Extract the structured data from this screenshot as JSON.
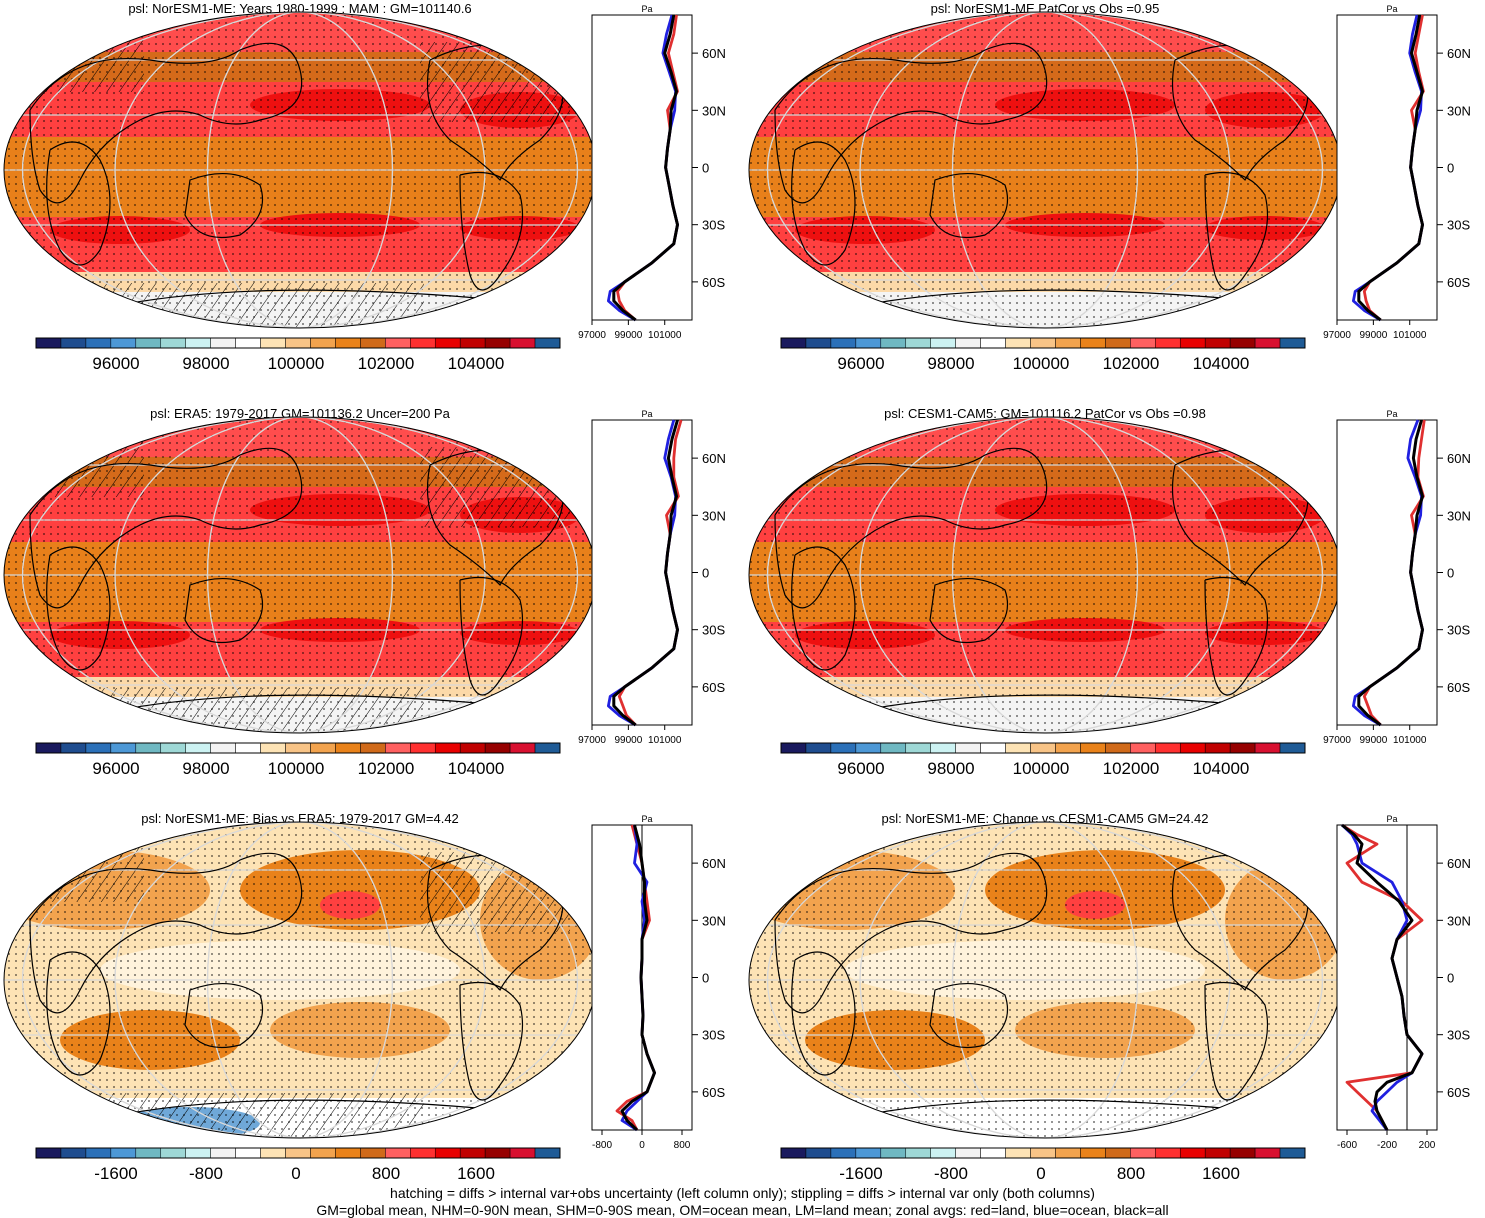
{
  "colors": {
    "scale": [
      "#1a1a5e",
      "#1f4d8f",
      "#2b70b8",
      "#4d98d6",
      "#6fb8c2",
      "#9ed8d6",
      "#ccf2f2",
      "#f3f3f3",
      "#ffffff",
      "#fde3b5",
      "#f8c487",
      "#f2a34e",
      "#e9821a",
      "#d06a1a",
      "#ff6060",
      "#ff3030",
      "#e80000",
      "#c00000",
      "#960000",
      "#d81030",
      "#1f5b96"
    ],
    "land": "#e03030",
    "ocean": "#2020e0",
    "all": "#000000"
  },
  "chart_data": [
    {
      "type": "heatmap",
      "title": "psl: NorESM1-ME: Years 1980-1999 : MAM : GM=101140.6",
      "colorbar_ticks": [
        "96000",
        "98000",
        "100000",
        "102000",
        "104000"
      ],
      "zonal": {
        "axis_label": "Pa",
        "x_ticks": [
          "97000",
          "99000",
          "101000"
        ],
        "xlim": [
          97000,
          102500
        ],
        "y_ticks": [
          "60N",
          "30N",
          "0",
          "30S",
          "60S"
        ],
        "lat_values": [
          80,
          70,
          60,
          50,
          40,
          30,
          20,
          10,
          0,
          -10,
          -20,
          -30,
          -40,
          -50,
          -60,
          -65,
          -70,
          -75,
          -80
        ],
        "series": [
          {
            "name": "land",
            "values": [
              101650,
              101500,
              101200,
              101450,
              101700,
              101150,
              101300,
              101150,
              101050,
              101250,
              101450,
              101700,
              101500,
              100300,
              98800,
              98400,
              98500,
              98800,
              99400
            ]
          },
          {
            "name": "ocean",
            "values": [
              101400,
              101100,
              100900,
              101250,
              101600,
              101550,
              101300,
              101150,
              101050,
              101250,
              101450,
              101700,
              101500,
              100300,
              98800,
              98000,
              97900,
              98500,
              99400
            ]
          },
          {
            "name": "all",
            "values": [
              101500,
              101300,
              101000,
              101350,
              101650,
              101350,
              101300,
              101150,
              101050,
              101250,
              101450,
              101700,
              101500,
              100300,
              98800,
              98200,
              98200,
              98700,
              99400
            ]
          }
        ]
      }
    },
    {
      "type": "heatmap",
      "title": "psl: NorESM1-ME PatCor vs Obs =0.95",
      "colorbar_ticks": [
        "96000",
        "98000",
        "100000",
        "102000",
        "104000"
      ],
      "zonal": {
        "axis_label": "Pa",
        "x_ticks": [
          "97000",
          "99000",
          "101000"
        ],
        "xlim": [
          97000,
          102500
        ],
        "y_ticks": [
          "60N",
          "30N",
          "0",
          "30S",
          "60S"
        ],
        "lat_values": [
          80,
          70,
          60,
          50,
          40,
          30,
          20,
          10,
          0,
          -10,
          -20,
          -30,
          -40,
          -50,
          -60,
          -65,
          -70,
          -75,
          -80
        ],
        "series": [
          {
            "name": "land",
            "values": [
              101700,
              101500,
              101300,
              101500,
              101750,
              101100,
              101300,
              101150,
              101050,
              101250,
              101450,
              101700,
              101500,
              100300,
              98800,
              98500,
              98600,
              98800,
              99400
            ]
          },
          {
            "name": "ocean",
            "values": [
              101400,
              101150,
              101000,
              101300,
              101650,
              101600,
              101300,
              101150,
              101050,
              101250,
              101450,
              101700,
              101500,
              100300,
              98800,
              98000,
              97900,
              98500,
              99400
            ]
          },
          {
            "name": "all",
            "values": [
              101550,
              101350,
              101100,
              101400,
              101700,
              101400,
              101300,
              101150,
              101050,
              101250,
              101450,
              101700,
              101500,
              100300,
              98800,
              98200,
              98200,
              98700,
              99400
            ]
          }
        ]
      }
    },
    {
      "type": "heatmap",
      "title": "psl: ERA5: 1979-2017 GM=101136.2 Uncer=200 Pa",
      "colorbar_ticks": [
        "96000",
        "98000",
        "100000",
        "102000",
        "104000"
      ],
      "zonal": {
        "axis_label": "Pa",
        "x_ticks": [
          "97000",
          "99000",
          "101000"
        ],
        "xlim": [
          97000,
          102500
        ],
        "y_ticks": [
          "60N",
          "30N",
          "0",
          "30S",
          "60S"
        ],
        "lat_values": [
          80,
          70,
          60,
          50,
          40,
          30,
          20,
          10,
          0,
          -10,
          -20,
          -30,
          -40,
          -50,
          -60,
          -65,
          -70,
          -75,
          -80
        ],
        "series": [
          {
            "name": "land",
            "values": [
              101900,
              101600,
              101500,
              101500,
              101750,
              101100,
              101300,
              101150,
              101050,
              101250,
              101450,
              101700,
              101500,
              100300,
              98800,
              98500,
              98700,
              98900,
              99400
            ]
          },
          {
            "name": "ocean",
            "values": [
              101500,
              101200,
              101000,
              101350,
              101600,
              101550,
              101300,
              101150,
              101050,
              101250,
              101450,
              101700,
              101500,
              100300,
              98800,
              98000,
              97900,
              98500,
              99400
            ]
          },
          {
            "name": "all",
            "values": [
              101700,
              101400,
              101200,
              101400,
              101650,
              101350,
              101300,
              101150,
              101050,
              101250,
              101450,
              101700,
              101500,
              100300,
              98800,
              98200,
              98200,
              98700,
              99400
            ]
          }
        ]
      }
    },
    {
      "type": "heatmap",
      "title": "psl: CESM1-CAM5: GM=101116.2 PatCor vs Obs =0.98",
      "colorbar_ticks": [
        "96000",
        "98000",
        "100000",
        "102000",
        "104000"
      ],
      "zonal": {
        "axis_label": "Pa",
        "x_ticks": [
          "97000",
          "99000",
          "101000"
        ],
        "xlim": [
          97000,
          102500
        ],
        "y_ticks": [
          "60N",
          "30N",
          "0",
          "30S",
          "60S"
        ],
        "lat_values": [
          80,
          70,
          60,
          50,
          40,
          30,
          20,
          10,
          0,
          -10,
          -20,
          -30,
          -40,
          -50,
          -60,
          -65,
          -70,
          -75,
          -80
        ],
        "series": [
          {
            "name": "land",
            "values": [
              101800,
              101650,
              101500,
              101450,
              101750,
              101100,
              101300,
              101150,
              101050,
              101250,
              101450,
              101700,
              101500,
              100300,
              98800,
              98500,
              98700,
              98900,
              99400
            ]
          },
          {
            "name": "ocean",
            "values": [
              101450,
              101050,
              100900,
              101300,
              101650,
              101600,
              101300,
              101150,
              101050,
              101250,
              101450,
              101700,
              101500,
              100300,
              98800,
              98000,
              97900,
              98500,
              99400
            ]
          },
          {
            "name": "all",
            "values": [
              101650,
              101350,
              101200,
              101400,
              101700,
              101400,
              101300,
              101150,
              101050,
              101250,
              101450,
              101700,
              101500,
              100300,
              98800,
              98200,
              98200,
              98700,
              99400
            ]
          }
        ]
      }
    },
    {
      "type": "heatmap",
      "title": "psl: NorESM1-ME: Bias vs ERA5: 1979-2017 GM=4.42",
      "colorbar_ticks": [
        "-1600",
        "-800",
        "0",
        "800",
        "1600"
      ],
      "zonal": {
        "axis_label": "Pa",
        "x_ticks": [
          "-800",
          "0",
          "800"
        ],
        "xlim": [
          -1000,
          1000
        ],
        "y_ticks": [
          "60N",
          "30N",
          "0",
          "30S",
          "60S"
        ],
        "lat_values": [
          80,
          70,
          60,
          50,
          40,
          30,
          20,
          10,
          0,
          -10,
          -20,
          -30,
          -40,
          -50,
          -60,
          -65,
          -70,
          -75,
          -80
        ],
        "series": [
          {
            "name": "land",
            "values": [
              -200,
              -100,
              0,
              50,
              100,
              150,
              0,
              0,
              -20,
              0,
              20,
              0,
              100,
              250,
              100,
              -300,
              -500,
              -200,
              -100
            ]
          },
          {
            "name": "ocean",
            "values": [
              -150,
              -100,
              -150,
              100,
              0,
              50,
              0,
              0,
              -20,
              0,
              20,
              0,
              100,
              250,
              100,
              -100,
              -300,
              -400,
              -100
            ]
          },
          {
            "name": "all",
            "values": [
              -150,
              -50,
              0,
              50,
              50,
              100,
              0,
              0,
              -20,
              0,
              20,
              0,
              100,
              250,
              100,
              -200,
              -400,
              -300,
              -100
            ]
          }
        ]
      }
    },
    {
      "type": "heatmap",
      "title": "psl: NorESM1-ME: Change vs CESM1-CAM5 GM=24.42",
      "colorbar_ticks": [
        "-1600",
        "-800",
        "0",
        "800",
        "1600"
      ],
      "zonal": {
        "axis_label": "Pa",
        "x_ticks": [
          "-600",
          "-200",
          "200"
        ],
        "xlim": [
          -700,
          300
        ],
        "y_ticks": [
          "60N",
          "30N",
          "0",
          "30S",
          "60S"
        ],
        "lat_values": [
          80,
          75,
          70,
          60,
          50,
          40,
          30,
          20,
          10,
          0,
          -10,
          -20,
          -30,
          -40,
          -50,
          -55,
          -60,
          -65,
          -70,
          -80
        ],
        "series": [
          {
            "name": "land",
            "values": [
              -650,
              -500,
              -300,
              -600,
              -450,
              -50,
              150,
              -100,
              -150,
              -100,
              -50,
              -30,
              0,
              150,
              50,
              -600,
              -500,
              -400,
              -300,
              -200
            ]
          },
          {
            "name": "ocean",
            "values": [
              -650,
              -550,
              -500,
              -450,
              -150,
              -50,
              0,
              -100,
              -150,
              -100,
              -50,
              -30,
              0,
              150,
              50,
              -100,
              -200,
              -300,
              -350,
              -200
            ]
          },
          {
            "name": "all",
            "values": [
              -650,
              -530,
              -450,
              -500,
              -300,
              -80,
              50,
              -100,
              -150,
              -100,
              -50,
              -30,
              0,
              150,
              50,
              -200,
              -300,
              -320,
              -300,
              -200
            ]
          }
        ]
      }
    }
  ],
  "footer": {
    "line1": "hatching = diffs > internal var+obs uncertainty (left column only); stippling = diffs > internal var only (both columns)",
    "line2": "GM=global mean, NHM=0-90N mean, SHM=0-90S mean, OM=ocean mean, LM=land mean; zonal avgs: red=land, blue=ocean, black=all"
  }
}
